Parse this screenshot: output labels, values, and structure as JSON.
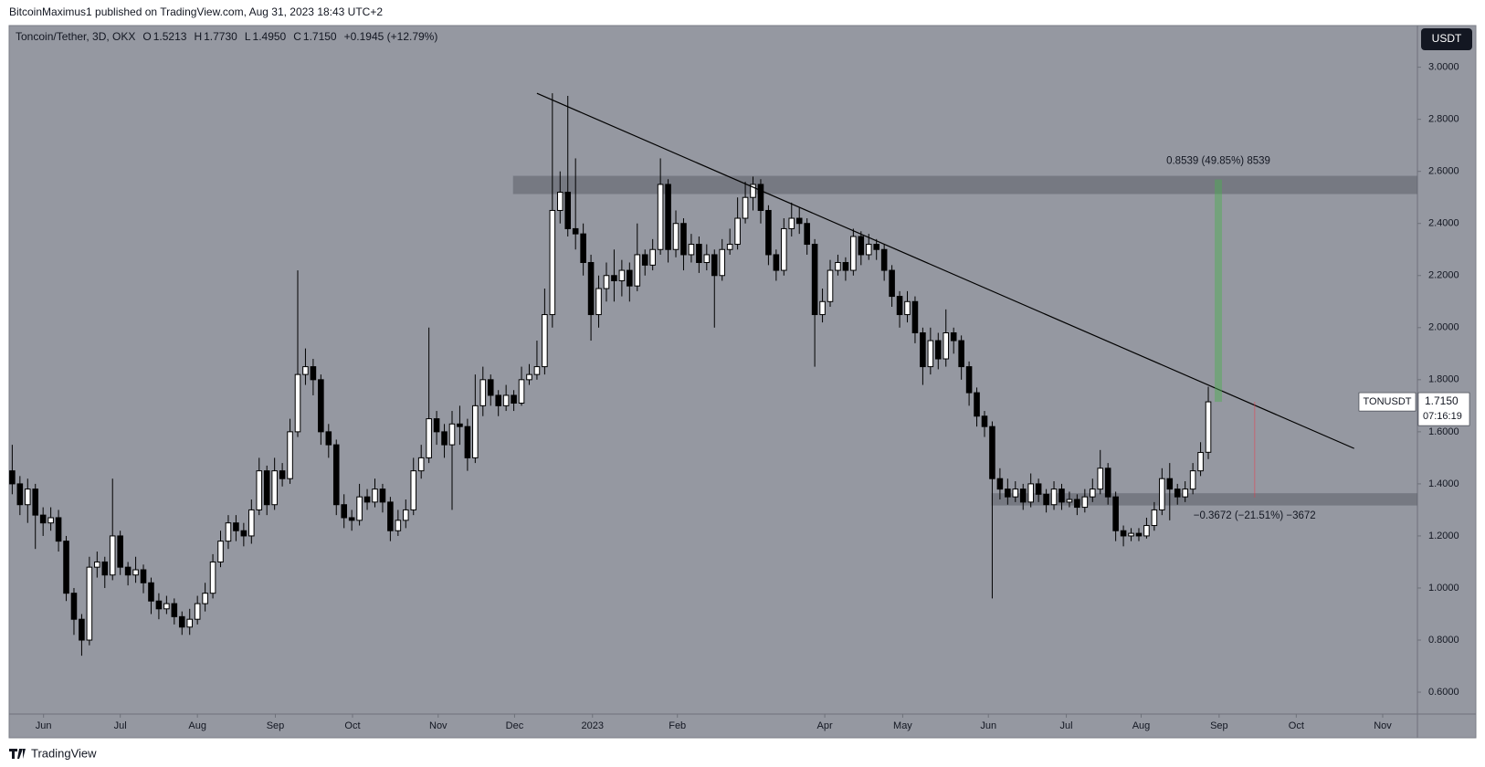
{
  "header": {
    "credit": "BitcoinMaximus1 published on TradingView.com, Aug 31, 2023 18:43 UTC+2",
    "footer": "TradingView"
  },
  "chart_data": {
    "type": "candlestick",
    "title": "Toncoin/Tether, 3D, OKX",
    "legend_values": [
      {
        "label": "O",
        "value": "1.5213"
      },
      {
        "label": "H",
        "value": "1.7730"
      },
      {
        "label": "L",
        "value": "1.4950"
      },
      {
        "label": "C",
        "value": "1.7150"
      }
    ],
    "change": "+0.1945 (+12.79%)",
    "currency": "USDT",
    "open": [
      1.45,
      1.4,
      1.32,
      1.38,
      1.28,
      1.25,
      1.27,
      1.18,
      0.98,
      0.88,
      0.8,
      1.08,
      1.1,
      1.05,
      1.2,
      1.08,
      1.05,
      1.07,
      1.02,
      0.95,
      0.92,
      0.94,
      0.89,
      0.85,
      0.88,
      0.94,
      0.98,
      1.1,
      1.18,
      1.25,
      1.22,
      1.2,
      1.3,
      1.45,
      1.32,
      1.45,
      1.42,
      1.6,
      1.82,
      1.85,
      1.8,
      1.6,
      1.55,
      1.32,
      1.27,
      1.26,
      1.35,
      1.33,
      1.38,
      1.33,
      1.22,
      1.26,
      1.3,
      1.45,
      1.5,
      1.65,
      1.6,
      1.55,
      1.63,
      1.62,
      1.5,
      1.7,
      1.8,
      1.74,
      1.7,
      1.74,
      1.71,
      1.8,
      1.82,
      1.85,
      2.05,
      2.45,
      2.52,
      2.38,
      2.36,
      2.25,
      2.05,
      2.15,
      2.2,
      2.18,
      2.22,
      2.16,
      2.28,
      2.24,
      2.3,
      2.55,
      2.3,
      2.4,
      2.28,
      2.32,
      2.25,
      2.28,
      2.2,
      2.3,
      2.32,
      2.42,
      2.5,
      2.55,
      2.45,
      2.28,
      2.22,
      2.38,
      2.42,
      2.4,
      2.32,
      2.05,
      2.1,
      2.22,
      2.25,
      2.22,
      2.35,
      2.28,
      2.32,
      2.3,
      2.22,
      2.12,
      2.05,
      2.1,
      1.98,
      1.85,
      1.95,
      1.88,
      1.98,
      1.95,
      1.85,
      1.75,
      1.66,
      1.62,
      1.42,
      1.38,
      1.35,
      1.38,
      1.33,
      1.4,
      1.36,
      1.32,
      1.38,
      1.33,
      1.34,
      1.31,
      1.35,
      1.38,
      1.46,
      1.35,
      1.22,
      1.2,
      1.21,
      1.2,
      1.24,
      1.3,
      1.42,
      1.38,
      1.35,
      1.38,
      1.45,
      1.5213
    ],
    "high": [
      1.55,
      1.43,
      1.42,
      1.4,
      1.31,
      1.31,
      1.3,
      1.2,
      1.0,
      0.9,
      1.12,
      1.14,
      1.12,
      1.42,
      1.22,
      1.1,
      1.12,
      1.09,
      1.04,
      0.98,
      0.97,
      0.96,
      0.91,
      0.92,
      0.97,
      1.02,
      1.13,
      1.22,
      1.28,
      1.28,
      1.25,
      1.34,
      1.5,
      1.47,
      1.5,
      1.48,
      1.65,
      2.22,
      1.92,
      1.88,
      1.82,
      1.63,
      1.57,
      1.36,
      1.3,
      1.4,
      1.38,
      1.42,
      1.4,
      1.35,
      1.3,
      1.34,
      1.5,
      1.55,
      2.0,
      1.68,
      1.63,
      1.68,
      1.7,
      1.65,
      1.82,
      1.85,
      1.82,
      1.76,
      1.78,
      1.76,
      1.85,
      1.86,
      1.95,
      2.15,
      2.9,
      2.6,
      2.89,
      2.65,
      2.4,
      2.28,
      2.2,
      2.25,
      2.3,
      2.26,
      2.25,
      2.4,
      2.3,
      2.34,
      2.65,
      2.57,
      2.45,
      2.42,
      2.36,
      2.35,
      2.32,
      2.3,
      2.34,
      2.38,
      2.5,
      2.56,
      2.58,
      2.57,
      2.47,
      2.3,
      2.42,
      2.48,
      2.46,
      2.42,
      2.34,
      2.15,
      2.26,
      2.28,
      2.27,
      2.38,
      2.37,
      2.36,
      2.34,
      2.32,
      2.24,
      2.14,
      2.14,
      2.12,
      2.0,
      2.0,
      1.98,
      2.07,
      2.0,
      1.97,
      1.87,
      1.77,
      1.68,
      1.64,
      1.46,
      1.42,
      1.41,
      1.4,
      1.44,
      1.42,
      1.38,
      1.41,
      1.4,
      1.37,
      1.36,
      1.38,
      1.42,
      1.53,
      1.48,
      1.37,
      1.24,
      1.23,
      1.23,
      1.27,
      1.33,
      1.46,
      1.48,
      1.4,
      1.41,
      1.48,
      1.56,
      1.773
    ],
    "low": [
      1.36,
      1.28,
      1.25,
      1.15,
      1.2,
      1.22,
      1.14,
      0.95,
      0.82,
      0.74,
      0.78,
      1.04,
      1.0,
      1.03,
      1.05,
      1.01,
      1.02,
      0.98,
      0.9,
      0.88,
      0.9,
      0.86,
      0.82,
      0.82,
      0.86,
      0.91,
      0.96,
      1.08,
      1.15,
      1.18,
      1.16,
      1.17,
      1.28,
      1.28,
      1.3,
      1.39,
      1.4,
      1.58,
      1.78,
      1.74,
      1.55,
      1.5,
      1.28,
      1.23,
      1.22,
      1.24,
      1.3,
      1.31,
      1.29,
      1.18,
      1.2,
      1.23,
      1.28,
      1.42,
      1.48,
      1.55,
      1.5,
      1.3,
      1.55,
      1.45,
      1.48,
      1.66,
      1.7,
      1.66,
      1.68,
      1.68,
      1.7,
      1.78,
      1.8,
      1.82,
      2.0,
      2.4,
      2.35,
      2.3,
      2.2,
      1.95,
      2.0,
      2.1,
      2.1,
      2.12,
      2.1,
      2.14,
      2.2,
      2.22,
      2.28,
      2.25,
      2.27,
      2.22,
      2.25,
      2.21,
      2.22,
      2.0,
      2.18,
      2.28,
      2.3,
      2.4,
      2.45,
      2.4,
      2.24,
      2.18,
      2.2,
      2.35,
      2.36,
      2.28,
      1.85,
      2.02,
      2.08,
      2.2,
      2.18,
      2.2,
      2.24,
      2.26,
      2.26,
      2.18,
      2.08,
      2.0,
      2.02,
      1.94,
      1.78,
      1.82,
      1.84,
      1.85,
      1.9,
      1.8,
      1.7,
      1.62,
      1.58,
      0.96,
      1.34,
      1.32,
      1.33,
      1.3,
      1.31,
      1.33,
      1.29,
      1.3,
      1.3,
      1.31,
      1.28,
      1.29,
      1.33,
      1.36,
      1.32,
      1.18,
      1.16,
      1.18,
      1.18,
      1.19,
      1.22,
      1.28,
      1.26,
      1.32,
      1.33,
      1.36,
      1.43,
      1.495
    ],
    "close": [
      1.4,
      1.32,
      1.38,
      1.28,
      1.25,
      1.27,
      1.18,
      0.98,
      0.88,
      0.8,
      1.08,
      1.1,
      1.05,
      1.2,
      1.08,
      1.05,
      1.07,
      1.02,
      0.95,
      0.92,
      0.94,
      0.89,
      0.85,
      0.88,
      0.94,
      0.98,
      1.1,
      1.18,
      1.25,
      1.22,
      1.2,
      1.3,
      1.45,
      1.32,
      1.45,
      1.42,
      1.6,
      1.82,
      1.85,
      1.8,
      1.6,
      1.55,
      1.32,
      1.27,
      1.26,
      1.35,
      1.33,
      1.38,
      1.33,
      1.22,
      1.26,
      1.3,
      1.45,
      1.5,
      1.65,
      1.6,
      1.55,
      1.63,
      1.62,
      1.5,
      1.7,
      1.8,
      1.74,
      1.7,
      1.74,
      1.71,
      1.8,
      1.82,
      1.85,
      2.05,
      2.45,
      2.52,
      2.38,
      2.36,
      2.25,
      2.05,
      2.15,
      2.2,
      2.18,
      2.22,
      2.16,
      2.28,
      2.24,
      2.3,
      2.55,
      2.3,
      2.4,
      2.28,
      2.32,
      2.25,
      2.28,
      2.2,
      2.3,
      2.32,
      2.42,
      2.5,
      2.55,
      2.45,
      2.28,
      2.22,
      2.38,
      2.42,
      2.4,
      2.32,
      2.05,
      2.1,
      2.22,
      2.25,
      2.22,
      2.35,
      2.28,
      2.32,
      2.3,
      2.22,
      2.12,
      2.05,
      2.1,
      1.98,
      1.85,
      1.95,
      1.88,
      1.98,
      1.95,
      1.85,
      1.75,
      1.66,
      1.62,
      1.42,
      1.38,
      1.35,
      1.38,
      1.33,
      1.4,
      1.36,
      1.32,
      1.38,
      1.33,
      1.34,
      1.31,
      1.35,
      1.38,
      1.46,
      1.35,
      1.22,
      1.2,
      1.21,
      1.2,
      1.24,
      1.3,
      1.42,
      1.38,
      1.35,
      1.38,
      1.45,
      1.5205,
      1.715
    ],
    "up_color": "#ffffff",
    "down_color": "#000000",
    "wick_color": "#000000",
    "background": "#9598a1",
    "ylim": [
      0.516,
      3.16
    ],
    "yticks": [
      {
        "value": 0.6,
        "label": "0.6000"
      },
      {
        "value": 0.8,
        "label": "0.8000"
      },
      {
        "value": 1.0,
        "label": "1.0000"
      },
      {
        "value": 1.2,
        "label": "1.2000"
      },
      {
        "value": 1.4,
        "label": "1.4000"
      },
      {
        "value": 1.6,
        "label": "1.6000"
      },
      {
        "value": 1.8,
        "label": "1.8000"
      },
      {
        "value": 2.0,
        "label": "2.0000"
      },
      {
        "value": 2.2,
        "label": "2.2000"
      },
      {
        "value": 2.4,
        "label": "2.4000"
      },
      {
        "value": 2.6,
        "label": "2.6000"
      },
      {
        "value": 2.8,
        "label": "2.8000"
      },
      {
        "value": 3.0,
        "label": "3.0000"
      }
    ],
    "xlim": [
      -0.4,
      182.1
    ],
    "xticks": [
      {
        "value": 4.06,
        "label": "Jun"
      },
      {
        "value": 14.0,
        "label": "Jul"
      },
      {
        "value": 24.0,
        "label": "Aug"
      },
      {
        "value": 34.1,
        "label": "Sep"
      },
      {
        "value": 44.1,
        "label": "Oct"
      },
      {
        "value": 55.2,
        "label": "Nov"
      },
      {
        "value": 65.1,
        "label": "Dec"
      },
      {
        "value": 75.2,
        "label": "2023"
      },
      {
        "value": 86.2,
        "label": "Feb"
      },
      {
        "value": 105.3,
        "label": "Apr"
      },
      {
        "value": 115.4,
        "label": "May"
      },
      {
        "value": 126.5,
        "label": "Jun"
      },
      {
        "value": 136.6,
        "label": "Jul"
      },
      {
        "value": 146.3,
        "label": "Aug"
      },
      {
        "value": 156.4,
        "label": "Sep"
      },
      {
        "value": 166.4,
        "label": "Oct"
      },
      {
        "value": 177.6,
        "label": "Nov"
      }
    ],
    "grid": false,
    "last_price": {
      "symbol": "TONUSDT",
      "value": 1.715,
      "label": "1.7150",
      "countdown": "07:16:19"
    },
    "trendline": {
      "x": [
        68,
        173.9
      ],
      "y": [
        2.9,
        1.536
      ],
      "color": "#000000"
    },
    "zones": [
      {
        "x": [
          64.9,
          182.1
        ],
        "y": [
          2.513,
          2.583
        ]
      },
      {
        "x": [
          126.9,
          182.1
        ],
        "y": [
          1.317,
          1.364
        ]
      }
    ],
    "measures": [
      {
        "x": 156.3,
        "y": [
          1.715,
          2.5689
        ],
        "color": "#4caf50",
        "label": "0.8539 (49.85%) 8539"
      },
      {
        "x": 161,
        "y": [
          1.715,
          1.3478
        ],
        "color": "#f23645",
        "label": "−0.3672 (−21.51%) −3672"
      }
    ]
  }
}
